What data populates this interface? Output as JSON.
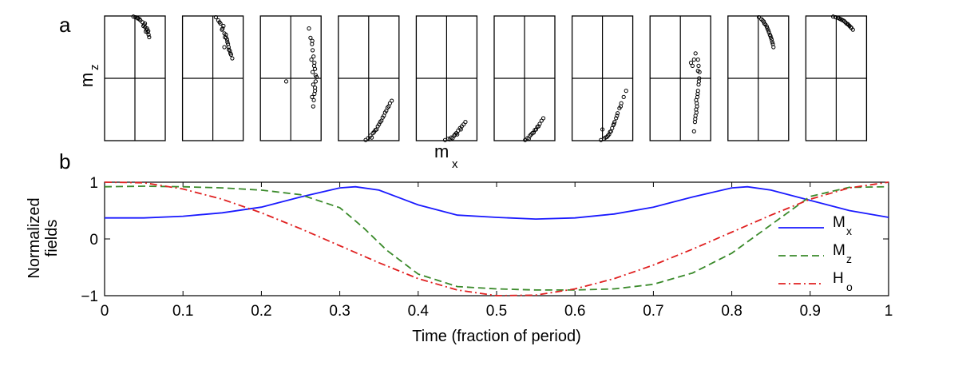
{
  "panel_a": {
    "label": "a",
    "ylabel": "m",
    "ylabel_sub": "z",
    "xlabel": "m",
    "xlabel_sub": "x",
    "mini_axes": [
      {
        "xlim": [
          -1,
          1
        ],
        "ylim": [
          -1,
          1
        ],
        "points": [
          [
            -0.05,
            0.99
          ],
          [
            0.02,
            0.98
          ],
          [
            0.1,
            0.96
          ],
          [
            0.18,
            0.93
          ],
          [
            0.25,
            0.9
          ],
          [
            0.3,
            0.86
          ],
          [
            0.34,
            0.82
          ],
          [
            0.38,
            0.78
          ],
          [
            0.42,
            0.74
          ],
          [
            0.45,
            0.7
          ],
          [
            0.47,
            0.66
          ],
          [
            0.33,
            0.88
          ],
          [
            0.4,
            0.8
          ],
          [
            0.15,
            0.95
          ],
          [
            0.28,
            0.84
          ],
          [
            0.44,
            0.76
          ],
          [
            0.08,
            0.97
          ],
          [
            0.36,
            0.75
          ]
        ]
      },
      {
        "xlim": [
          -1,
          1
        ],
        "ylim": [
          -1,
          1
        ],
        "points": [
          [
            0.1,
            0.98
          ],
          [
            0.18,
            0.93
          ],
          [
            0.25,
            0.88
          ],
          [
            0.32,
            0.8
          ],
          [
            0.38,
            0.72
          ],
          [
            0.44,
            0.65
          ],
          [
            0.48,
            0.58
          ],
          [
            0.52,
            0.5
          ],
          [
            0.56,
            0.44
          ],
          [
            0.6,
            0.38
          ],
          [
            0.64,
            0.32
          ],
          [
            0.3,
            0.78
          ],
          [
            0.4,
            0.66
          ],
          [
            0.35,
            0.84
          ],
          [
            0.47,
            0.62
          ],
          [
            0.53,
            0.46
          ],
          [
            0.58,
            0.4
          ],
          [
            0.22,
            0.9
          ],
          [
            0.43,
            0.7
          ],
          [
            0.5,
            0.55
          ],
          [
            0.38,
            0.5
          ]
        ]
      },
      {
        "xlim": [
          -1,
          1
        ],
        "ylim": [
          -1,
          1
        ],
        "points": [
          [
            0.6,
            0.8
          ],
          [
            0.65,
            0.65
          ],
          [
            0.7,
            0.55
          ],
          [
            0.72,
            0.45
          ],
          [
            0.75,
            0.35
          ],
          [
            0.78,
            0.25
          ],
          [
            0.8,
            0.15
          ],
          [
            0.82,
            0.05
          ],
          [
            0.82,
            -0.05
          ],
          [
            0.8,
            -0.15
          ],
          [
            0.78,
            -0.25
          ],
          [
            0.76,
            -0.35
          ],
          [
            0.74,
            -0.45
          ],
          [
            0.68,
            0.3
          ],
          [
            0.72,
            0.1
          ],
          [
            0.74,
            -0.1
          ],
          [
            0.7,
            -0.3
          ],
          [
            0.77,
            0.2
          ],
          [
            0.8,
            -0.2
          ],
          [
            0.71,
            0.6
          ],
          [
            0.85,
            0.02
          ],
          [
            -0.15,
            -0.05
          ]
        ]
      },
      {
        "xlim": [
          -1,
          1
        ],
        "ylim": [
          -1,
          1
        ],
        "points": [
          [
            -0.1,
            -0.99
          ],
          [
            -0.02,
            -0.96
          ],
          [
            0.06,
            -0.92
          ],
          [
            0.14,
            -0.88
          ],
          [
            0.22,
            -0.83
          ],
          [
            0.3,
            -0.77
          ],
          [
            0.38,
            -0.7
          ],
          [
            0.46,
            -0.63
          ],
          [
            0.54,
            -0.55
          ],
          [
            0.62,
            -0.47
          ],
          [
            0.7,
            -0.4
          ],
          [
            0.76,
            -0.36
          ],
          [
            0.1,
            -0.95
          ],
          [
            0.26,
            -0.82
          ],
          [
            0.42,
            -0.68
          ],
          [
            0.58,
            -0.52
          ],
          [
            0.66,
            -0.45
          ],
          [
            0.34,
            -0.74
          ],
          [
            0.5,
            -0.6
          ],
          [
            0.18,
            -0.86
          ]
        ]
      },
      {
        "xlim": [
          -1,
          1
        ],
        "ylim": [
          -1,
          1
        ],
        "points": [
          [
            -0.05,
            -0.99
          ],
          [
            0.05,
            -0.97
          ],
          [
            0.15,
            -0.95
          ],
          [
            0.25,
            -0.92
          ],
          [
            0.32,
            -0.88
          ],
          [
            0.38,
            -0.84
          ],
          [
            0.44,
            -0.8
          ],
          [
            0.5,
            -0.77
          ],
          [
            0.56,
            -0.74
          ],
          [
            0.62,
            -0.7
          ],
          [
            0.2,
            -0.96
          ],
          [
            0.35,
            -0.9
          ],
          [
            0.47,
            -0.82
          ],
          [
            0.1,
            -0.98
          ],
          [
            0.28,
            -0.9
          ]
        ]
      },
      {
        "xlim": [
          -1,
          1
        ],
        "ylim": [
          -1,
          1
        ],
        "points": [
          [
            0.02,
            -0.99
          ],
          [
            0.1,
            -0.96
          ],
          [
            0.18,
            -0.92
          ],
          [
            0.26,
            -0.88
          ],
          [
            0.34,
            -0.83
          ],
          [
            0.42,
            -0.78
          ],
          [
            0.5,
            -0.73
          ],
          [
            0.56,
            -0.68
          ],
          [
            0.62,
            -0.64
          ],
          [
            0.14,
            -0.97
          ],
          [
            0.3,
            -0.87
          ],
          [
            0.46,
            -0.77
          ],
          [
            0.22,
            -0.9
          ],
          [
            0.38,
            -0.82
          ]
        ]
      },
      {
        "xlim": [
          -1,
          1
        ],
        "ylim": [
          -1,
          1
        ],
        "points": [
          [
            -0.05,
            -0.99
          ],
          [
            0.05,
            -0.97
          ],
          [
            0.15,
            -0.94
          ],
          [
            0.22,
            -0.9
          ],
          [
            0.28,
            -0.85
          ],
          [
            0.32,
            -0.8
          ],
          [
            0.36,
            -0.75
          ],
          [
            0.4,
            -0.7
          ],
          [
            0.45,
            -0.64
          ],
          [
            0.5,
            -0.56
          ],
          [
            0.56,
            -0.48
          ],
          [
            0.62,
            -0.4
          ],
          [
            0.7,
            -0.3
          ],
          [
            0.78,
            -0.2
          ],
          [
            0.1,
            -0.95
          ],
          [
            0.25,
            -0.86
          ],
          [
            0.38,
            -0.73
          ],
          [
            0.48,
            -0.6
          ],
          [
            0.6,
            -0.45
          ],
          [
            0.18,
            -0.92
          ],
          [
            0.0,
            -0.82
          ]
        ]
      },
      {
        "xlim": [
          -1,
          1
        ],
        "ylim": [
          -1,
          1
        ],
        "points": [
          [
            0.45,
            -0.85
          ],
          [
            0.48,
            -0.7
          ],
          [
            0.5,
            -0.6
          ],
          [
            0.52,
            -0.5
          ],
          [
            0.54,
            -0.4
          ],
          [
            0.56,
            -0.3
          ],
          [
            0.58,
            -0.2
          ],
          [
            0.6,
            -0.1
          ],
          [
            0.62,
            0.0
          ],
          [
            0.63,
            0.1
          ],
          [
            0.6,
            0.2
          ],
          [
            0.58,
            0.3
          ],
          [
            0.55,
            -0.45
          ],
          [
            0.57,
            -0.25
          ],
          [
            0.61,
            -0.05
          ],
          [
            0.53,
            -0.55
          ],
          [
            0.49,
            -0.65
          ],
          [
            0.4,
            0.2
          ],
          [
            0.45,
            0.3
          ],
          [
            0.35,
            0.25
          ],
          [
            0.5,
            0.4
          ],
          [
            0.58,
            0.12
          ],
          [
            0.52,
            -0.35
          ]
        ]
      },
      {
        "xlim": [
          -1,
          1
        ],
        "ylim": [
          -1,
          1
        ],
        "points": [
          [
            0.02,
            0.98
          ],
          [
            0.1,
            0.95
          ],
          [
            0.18,
            0.91
          ],
          [
            0.24,
            0.86
          ],
          [
            0.3,
            0.8
          ],
          [
            0.35,
            0.74
          ],
          [
            0.4,
            0.68
          ],
          [
            0.44,
            0.62
          ],
          [
            0.48,
            0.55
          ],
          [
            0.5,
            0.5
          ],
          [
            0.2,
            0.88
          ],
          [
            0.33,
            0.77
          ],
          [
            0.42,
            0.65
          ],
          [
            0.28,
            0.83
          ],
          [
            0.46,
            0.58
          ],
          [
            0.38,
            0.7
          ],
          [
            0.14,
            0.93
          ]
        ]
      },
      {
        "xlim": [
          -1,
          1
        ],
        "ylim": [
          -1,
          1
        ],
        "points": [
          [
            -0.1,
            0.99
          ],
          [
            -0.02,
            0.98
          ],
          [
            0.06,
            0.97
          ],
          [
            0.14,
            0.95
          ],
          [
            0.22,
            0.93
          ],
          [
            0.3,
            0.9
          ],
          [
            0.38,
            0.87
          ],
          [
            0.44,
            0.84
          ],
          [
            0.5,
            0.81
          ],
          [
            0.55,
            0.78
          ],
          [
            0.1,
            0.96
          ],
          [
            0.26,
            0.92
          ],
          [
            0.4,
            0.86
          ],
          [
            0.48,
            0.82
          ],
          [
            0.18,
            0.94
          ],
          [
            0.34,
            0.88
          ]
        ]
      }
    ]
  },
  "chart_data": {
    "type": "line",
    "panel_label": "b",
    "title": "",
    "xlabel": "Time (fraction of period)",
    "ylabel_line1": "Normalized",
    "ylabel_line2": "fields",
    "xlim": [
      0,
      1
    ],
    "ylim": [
      -1,
      1
    ],
    "xticks": [
      0,
      0.1,
      0.2,
      0.3,
      0.4,
      0.5,
      0.6,
      0.7,
      0.8,
      0.9,
      1
    ],
    "xtick_labels": [
      "0",
      "0.1",
      "0.2",
      "0.3",
      "0.4",
      "0.5",
      "0.6",
      "0.7",
      "0.8",
      "0.9",
      "1"
    ],
    "yticks": [
      -1,
      0,
      1
    ],
    "ytick_labels": [
      "−1",
      "0",
      "1"
    ],
    "grid": false,
    "legend_position": "right",
    "series": [
      {
        "name": "M",
        "sub": "x",
        "color": "#1a1aff",
        "dash": "solid",
        "x": [
          0,
          0.05,
          0.1,
          0.15,
          0.2,
          0.25,
          0.3,
          0.32,
          0.35,
          0.4,
          0.45,
          0.5,
          0.55,
          0.6,
          0.65,
          0.7,
          0.75,
          0.8,
          0.82,
          0.85,
          0.9,
          0.95,
          1
        ],
        "y": [
          0.37,
          0.37,
          0.4,
          0.46,
          0.56,
          0.74,
          0.9,
          0.92,
          0.86,
          0.6,
          0.42,
          0.38,
          0.35,
          0.37,
          0.44,
          0.56,
          0.74,
          0.9,
          0.92,
          0.86,
          0.68,
          0.5,
          0.38
        ]
      },
      {
        "name": "M",
        "sub": "z",
        "color": "#3a8a2a",
        "dash": "dashed",
        "x": [
          0,
          0.05,
          0.1,
          0.15,
          0.2,
          0.25,
          0.3,
          0.33,
          0.36,
          0.4,
          0.45,
          0.5,
          0.55,
          0.6,
          0.65,
          0.7,
          0.75,
          0.8,
          0.85,
          0.9,
          0.95,
          1
        ],
        "y": [
          0.92,
          0.93,
          0.92,
          0.9,
          0.86,
          0.78,
          0.55,
          0.2,
          -0.2,
          -0.62,
          -0.84,
          -0.88,
          -0.9,
          -0.9,
          -0.88,
          -0.8,
          -0.6,
          -0.25,
          0.25,
          0.75,
          0.91,
          0.92
        ]
      },
      {
        "name": "H",
        "sub": "o",
        "color": "#e02020",
        "dash": "dashdot",
        "x": [
          0,
          0.05,
          0.1,
          0.15,
          0.2,
          0.25,
          0.3,
          0.35,
          0.4,
          0.45,
          0.5,
          0.55,
          0.6,
          0.65,
          0.7,
          0.75,
          0.8,
          0.85,
          0.9,
          0.95,
          1
        ],
        "y": [
          1.0,
          0.99,
          0.88,
          0.7,
          0.46,
          0.18,
          -0.12,
          -0.42,
          -0.7,
          -0.9,
          -1.0,
          -0.99,
          -0.88,
          -0.7,
          -0.46,
          -0.18,
          0.12,
          0.42,
          0.7,
          0.9,
          1.0
        ]
      }
    ]
  }
}
